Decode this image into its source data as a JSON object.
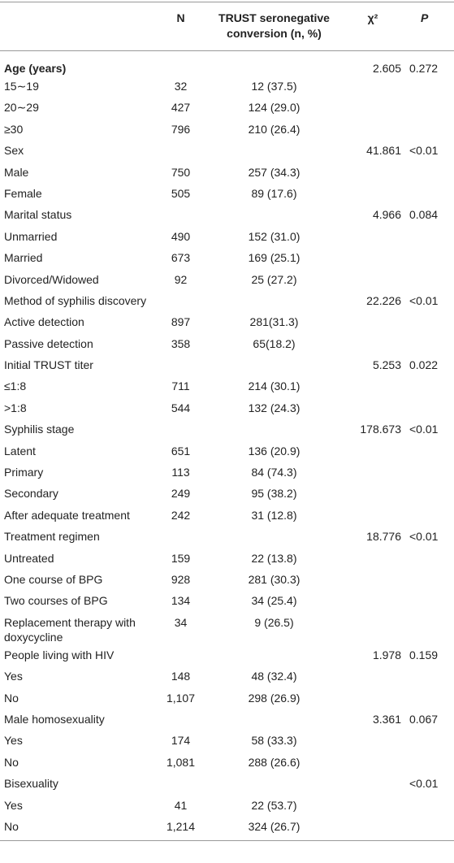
{
  "table": {
    "header": [
      null,
      "N",
      "TRUST seronegative conversion (n, %)",
      "χ²",
      "P"
    ],
    "rows": [
      [
        "Age (years)",
        null,
        null,
        "2.605",
        "0.272"
      ],
      [
        "15∼19",
        "32",
        "12 (37.5)",
        null,
        null
      ],
      [
        "20∼29",
        "427",
        "124 (29.0)",
        null,
        null
      ],
      [
        "≥30",
        "796",
        "210 (26.4)",
        null,
        null
      ],
      [
        "Sex",
        null,
        null,
        "41.861",
        "<0.01"
      ],
      [
        "Male",
        "750",
        "257 (34.3)",
        null,
        null
      ],
      [
        "Female",
        "505",
        "89 (17.6)",
        null,
        null
      ],
      [
        "Marital status",
        null,
        null,
        "4.966",
        "0.084"
      ],
      [
        "Unmarried",
        "490",
        "152 (31.0)",
        null,
        null
      ],
      [
        "Married",
        "673",
        "169 (25.1)",
        null,
        null
      ],
      [
        "Divorced/Widowed",
        "92",
        "25 (27.2)",
        null,
        null
      ],
      [
        "Method of syphilis discovery",
        null,
        null,
        "22.226",
        "<0.01"
      ],
      [
        "Active detection",
        "897",
        "281(31.3)",
        null,
        null
      ],
      [
        "Passive detection",
        "358",
        "65(18.2)",
        null,
        null
      ],
      [
        "Initial TRUST titer",
        null,
        null,
        "5.253",
        "0.022"
      ],
      [
        "≤1:8",
        "711",
        "214 (30.1)",
        null,
        null
      ],
      [
        ">1:8",
        "544",
        "132 (24.3)",
        null,
        null
      ],
      [
        "Syphilis stage",
        null,
        null,
        "178.673",
        "<0.01"
      ],
      [
        "Latent",
        "651",
        "136 (20.9)",
        null,
        null
      ],
      [
        "Primary",
        "113",
        "84 (74.3)",
        null,
        null
      ],
      [
        "Secondary",
        "249",
        "95 (38.2)",
        null,
        null
      ],
      [
        "After adequate treatment",
        "242",
        "31 (12.8)",
        null,
        null
      ],
      [
        "Treatment regimen",
        null,
        null,
        "18.776",
        "<0.01"
      ],
      [
        "Untreated",
        "159",
        "22 (13.8)",
        null,
        null
      ],
      [
        "One course of BPG",
        "928",
        "281 (30.3)",
        null,
        null
      ],
      [
        "Two courses of BPG",
        "134",
        "34 (25.4)",
        null,
        null
      ],
      [
        "Replacement therapy with doxycycline",
        "34",
        "9 (26.5)",
        null,
        null
      ],
      [
        "People living with HIV",
        null,
        null,
        "1.978",
        "0.159"
      ],
      [
        "Yes",
        "148",
        "48 (32.4)",
        null,
        null
      ],
      [
        "No",
        "1,107",
        "298 (26.9)",
        null,
        null
      ],
      [
        "Male homosexuality",
        null,
        null,
        "3.361",
        "0.067"
      ],
      [
        "Yes",
        "174",
        "58 (33.3)",
        null,
        null
      ],
      [
        "No",
        "1,081",
        "288 (26.6)",
        null,
        null
      ],
      [
        "Bisexuality",
        null,
        null,
        null,
        "<0.01"
      ],
      [
        "Yes",
        "41",
        "22 (53.7)",
        null,
        null
      ],
      [
        "No",
        "1,214",
        "324 (26.7)",
        null,
        null
      ]
    ]
  }
}
